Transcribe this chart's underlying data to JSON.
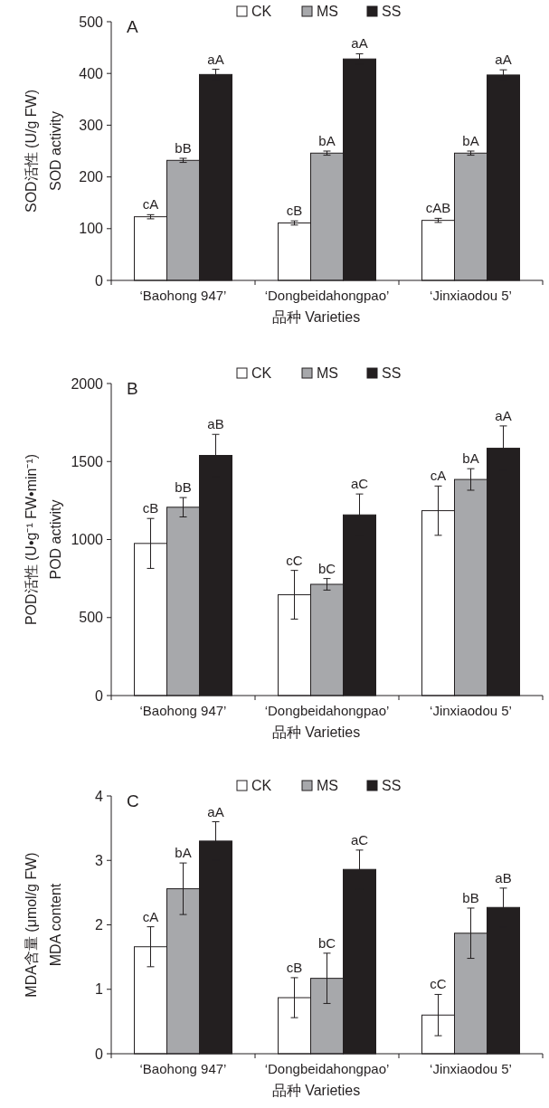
{
  "chart_data": [
    {
      "type": "bar",
      "title": "A",
      "ylabel": "SOD活性 (U/g FW)\nSOD activity",
      "xlabel": "品种    Varieties",
      "categories": [
        "‘Baohong 947’",
        "‘Dongbeidahongpao’",
        "‘Jinxiaodou 5’"
      ],
      "ylim": [
        0,
        500
      ],
      "yticks": [
        0,
        100,
        200,
        300,
        400,
        500
      ],
      "legend": "top",
      "series": [
        {
          "name": "CK",
          "color": "#ffffff",
          "values": [
            123,
            111,
            116
          ],
          "errors": [
            4,
            4,
            4
          ],
          "value_labels": [
            "cA",
            "cB",
            "cAB"
          ]
        },
        {
          "name": "MS",
          "color": "#a7a8ab",
          "values": [
            232,
            246,
            246
          ],
          "errors": [
            4,
            4,
            4
          ],
          "value_labels": [
            "bB",
            "bA",
            "bA"
          ]
        },
        {
          "name": "SS",
          "color": "#231f20",
          "values": [
            398,
            428,
            397
          ],
          "errors": [
            10,
            10,
            10
          ],
          "value_labels": [
            "aA",
            "aA",
            "aA"
          ]
        }
      ]
    },
    {
      "type": "bar",
      "title": "B",
      "ylabel": "POD活性 (U•g⁻¹ FW•min⁻¹)\nPOD activity",
      "xlabel": "品种    Varieties",
      "categories": [
        "‘Baohong 947’",
        "‘Dongbeidahongpao’",
        "‘Jinxiaodou 5’"
      ],
      "ylim": [
        0,
        2000
      ],
      "yticks": [
        0,
        500,
        1000,
        1500,
        2000
      ],
      "legend": "top",
      "series": [
        {
          "name": "CK",
          "color": "#ffffff",
          "values": [
            975,
            646,
            1185
          ],
          "errors": [
            160,
            156,
            158
          ],
          "value_labels": [
            "cB",
            "cC",
            "cA"
          ]
        },
        {
          "name": "MS",
          "color": "#a7a8ab",
          "values": [
            1207,
            713,
            1385
          ],
          "errors": [
            62,
            37,
            69
          ],
          "value_labels": [
            "bB",
            "bC",
            "bA"
          ]
        },
        {
          "name": "SS",
          "color": "#231f20",
          "values": [
            1539,
            1158,
            1585
          ],
          "errors": [
            135,
            134,
            143
          ],
          "value_labels": [
            "aB",
            "aC",
            "aA"
          ]
        }
      ]
    },
    {
      "type": "bar",
      "title": "C",
      "ylabel": "MDA含量 (μmol/g FW)\nMDA content",
      "xlabel": "品种    Varieties",
      "categories": [
        "‘Baohong 947’",
        "‘Dongbeidahongpao’",
        "‘Jinxiaodou 5’"
      ],
      "ylim": [
        0,
        4
      ],
      "yticks": [
        0,
        1,
        2,
        3,
        4
      ],
      "legend": "top",
      "series": [
        {
          "name": "CK",
          "color": "#ffffff",
          "values": [
            1.66,
            0.87,
            0.6
          ],
          "errors": [
            0.31,
            0.31,
            0.32
          ],
          "value_labels": [
            "cA",
            "cB",
            "cC"
          ]
        },
        {
          "name": "MS",
          "color": "#a7a8ab",
          "values": [
            2.56,
            1.17,
            1.87
          ],
          "errors": [
            0.4,
            0.39,
            0.39
          ],
          "value_labels": [
            "bA",
            "bC",
            "bB"
          ]
        },
        {
          "name": "SS",
          "color": "#231f20",
          "values": [
            3.3,
            2.86,
            2.27
          ],
          "errors": [
            0.3,
            0.3,
            0.3
          ],
          "value_labels": [
            "aA",
            "aC",
            "aB"
          ]
        }
      ]
    }
  ]
}
